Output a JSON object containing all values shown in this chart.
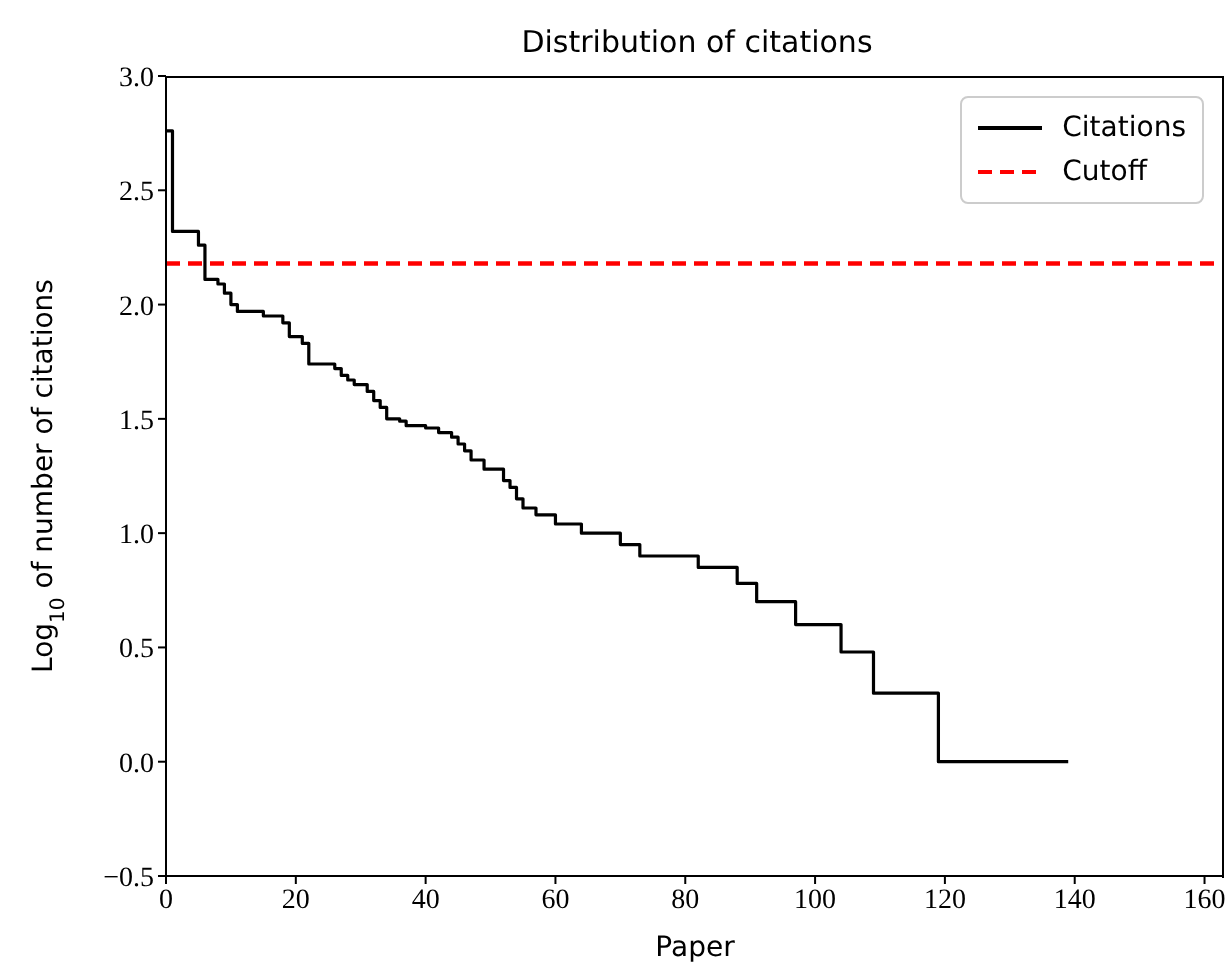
{
  "chart_data": {
    "type": "step",
    "title": "Distribution of citations",
    "xlabel": "Paper",
    "ylabel": "Log$_{10}$ of number of citations",
    "xlim": [
      0,
      163
    ],
    "xticks": [
      0,
      20,
      40,
      60,
      80,
      100,
      120,
      140,
      160
    ],
    "ylim": [
      -0.5,
      3.0
    ],
    "yticks": [
      {
        "value": -0.5,
        "label": "−0.5"
      },
      {
        "value": 0,
        "label": "0.0"
      },
      {
        "value": 0.5,
        "label": "0.5"
      },
      {
        "value": 1,
        "label": "1.0"
      },
      {
        "value": 1.5,
        "label": "1.5"
      },
      {
        "value": 2,
        "label": "2.0"
      },
      {
        "value": 2.5,
        "label": "2.5"
      },
      {
        "value": 3,
        "label": "3.0"
      }
    ],
    "legend": "top right",
    "series": [
      {
        "name": "Citations",
        "color": "#000000",
        "line_style": "solid",
        "x": [
          0,
          1,
          5,
          6,
          8,
          9,
          10,
          11,
          15,
          18,
          19,
          21,
          22,
          26,
          27,
          28,
          29,
          31,
          32,
          33,
          34,
          36,
          37,
          40,
          42,
          44,
          45,
          46,
          47,
          49,
          52,
          53,
          54,
          55,
          57,
          60,
          64,
          70,
          73,
          82,
          88,
          91,
          97,
          104,
          109,
          119,
          139
        ],
        "values": [
          2.76,
          2.32,
          2.26,
          2.11,
          2.09,
          2.05,
          2.0,
          1.97,
          1.95,
          1.92,
          1.86,
          1.83,
          1.74,
          1.72,
          1.69,
          1.67,
          1.65,
          1.62,
          1.58,
          1.55,
          1.5,
          1.49,
          1.47,
          1.46,
          1.44,
          1.42,
          1.39,
          1.36,
          1.32,
          1.28,
          1.23,
          1.2,
          1.15,
          1.11,
          1.08,
          1.04,
          1.0,
          0.95,
          0.9,
          0.85,
          0.78,
          0.7,
          0.6,
          0.48,
          0.3,
          0.0,
          0.0
        ]
      },
      {
        "name": "Cutoff",
        "color": "#ff0000",
        "line_style": "dashed",
        "x": [
          0,
          163
        ],
        "values": [
          2.18,
          2.18
        ]
      }
    ]
  }
}
